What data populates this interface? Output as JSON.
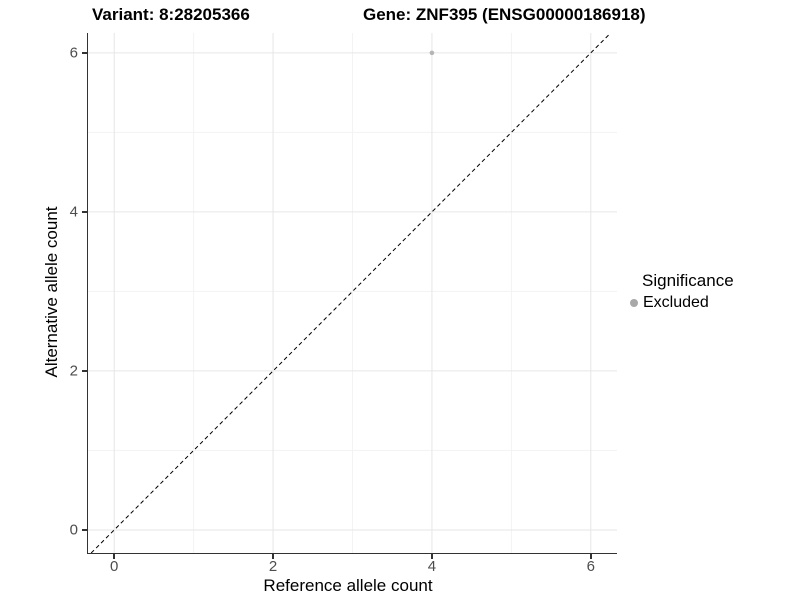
{
  "titles": {
    "variant": "Variant: 8:28205366",
    "gene": "Gene: ZNF395 (ENSG00000186918)"
  },
  "axes": {
    "x_label": "Reference allele count",
    "y_label": "Alternative allele count"
  },
  "legend": {
    "title": "Significance",
    "items": [
      {
        "label": "Excluded",
        "color": "#a8a8a8"
      }
    ]
  },
  "chart_data": {
    "type": "scatter",
    "title": "Variant: 8:28205366   Gene: ZNF395 (ENSG00000186918)",
    "xlabel": "Reference allele count",
    "ylabel": "Alternative allele count",
    "xlim": [
      -0.33,
      6.33
    ],
    "ylim": [
      -0.29,
      6.25
    ],
    "x_ticks": [
      0,
      2,
      4,
      6
    ],
    "y_ticks": [
      0,
      2,
      4,
      6
    ],
    "x_minor_ticks": [
      1,
      3,
      5
    ],
    "y_minor_ticks": [
      1,
      3,
      5
    ],
    "grid": true,
    "legend_position": "right",
    "series": [
      {
        "name": "Excluded",
        "color": "#b5b5b5",
        "points": [
          {
            "x": 4,
            "y": 6
          }
        ]
      }
    ],
    "reference_line": {
      "type": "identity",
      "slope": 1,
      "intercept": 0,
      "style": "dashed",
      "color": "#000000"
    }
  },
  "colors": {
    "grid_major": "#e6e6e6",
    "grid_minor": "#f3f3f3",
    "axis_line": "#333333",
    "tick_label": "#4d4d4d",
    "background": "#ffffff"
  }
}
